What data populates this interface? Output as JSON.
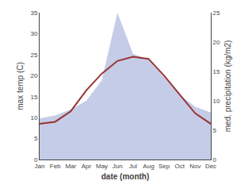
{
  "chart_data": {
    "type": "line",
    "categories": [
      "Jan",
      "Feb",
      "Mar",
      "Apr",
      "May",
      "Jun",
      "Jul",
      "Aug",
      "Sep",
      "Oct",
      "Nov",
      "Dec"
    ],
    "series": [
      {
        "type": "area",
        "axis": "y2",
        "color": "#c5cce8",
        "values": [
          7.0,
          7.5,
          8.5,
          10.0,
          13.5,
          25.0,
          18.0,
          17.0,
          14.0,
          11.0,
          9.0,
          8.0
        ]
      },
      {
        "type": "line",
        "color": "#993333",
        "values": [
          8.5,
          9.0,
          11.5,
          16.5,
          20.5,
          23.5,
          24.5,
          24.0,
          20.0,
          15.5,
          11.0,
          8.5
        ]
      }
    ],
    "xlabel": "date (month)",
    "ylabel": "max temp (C)",
    "y2label": "med. precipitation (kg/m2)",
    "ylim": [
      0,
      35
    ],
    "yticks": [
      0,
      5,
      10,
      15,
      20,
      25,
      30,
      35
    ],
    "y2lim": [
      0,
      25
    ],
    "y2ticks": [
      0,
      5,
      10,
      15,
      20,
      25
    ],
    "grid": false
  }
}
